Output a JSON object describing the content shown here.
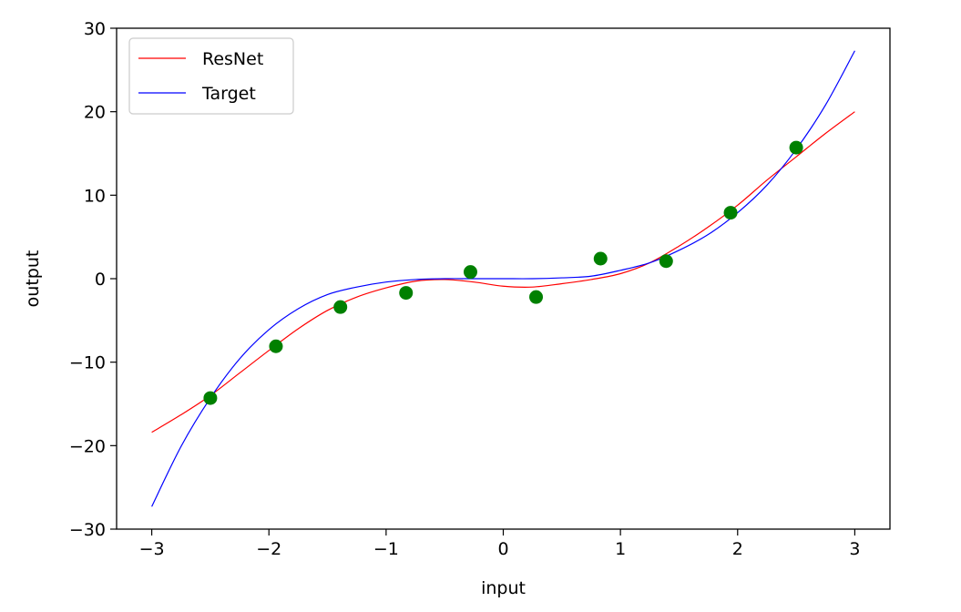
{
  "chart_data": {
    "type": "line",
    "title": "",
    "xlabel": "input",
    "ylabel": "output",
    "xlim": [
      -3.3,
      3.3
    ],
    "ylim": [
      -30,
      30
    ],
    "xticks": [
      -3,
      -2,
      -1,
      0,
      1,
      2,
      3
    ],
    "xtick_labels": [
      "−3",
      "−2",
      "−1",
      "0",
      "1",
      "2",
      "3"
    ],
    "yticks": [
      -30,
      -20,
      -10,
      0,
      10,
      20,
      30
    ],
    "ytick_labels": [
      "−30",
      "−20",
      "−10",
      "0",
      "10",
      "20",
      "30"
    ],
    "legend_position": "upper-left",
    "series": [
      {
        "name": "ResNet",
        "kind": "line",
        "color": "#ff0000",
        "x": [
          -3.0,
          -2.75,
          -2.5,
          -2.25,
          -2.0,
          -1.75,
          -1.5,
          -1.25,
          -1.0,
          -0.75,
          -0.5,
          -0.25,
          0.0,
          0.25,
          0.5,
          0.75,
          1.0,
          1.25,
          1.5,
          1.75,
          2.0,
          2.25,
          2.5,
          2.75,
          3.0
        ],
        "y": [
          -18.4,
          -16.3,
          -14.0,
          -11.3,
          -8.6,
          -6.0,
          -3.8,
          -2.2,
          -1.1,
          -0.3,
          -0.1,
          -0.4,
          -0.9,
          -1.0,
          -0.6,
          -0.1,
          0.6,
          1.9,
          3.9,
          6.2,
          8.8,
          11.8,
          14.6,
          17.4,
          20.0
        ]
      },
      {
        "name": "Target",
        "kind": "line",
        "color": "#0000ff",
        "x": [
          -3.0,
          -2.75,
          -2.5,
          -2.25,
          -2.0,
          -1.75,
          -1.5,
          -1.25,
          -1.0,
          -0.75,
          -0.5,
          -0.25,
          0.0,
          0.25,
          0.5,
          0.75,
          1.0,
          1.25,
          1.5,
          1.75,
          2.0,
          2.25,
          2.5,
          2.75,
          3.0
        ],
        "y": [
          -27.3,
          -20.1,
          -14.3,
          -9.6,
          -6.1,
          -3.6,
          -1.9,
          -1.0,
          -0.4,
          -0.1,
          0.0,
          0.0,
          0.0,
          0.0,
          0.1,
          0.3,
          1.0,
          1.9,
          3.4,
          5.3,
          7.9,
          11.2,
          15.5,
          20.8,
          27.3
        ]
      },
      {
        "kind": "scatter",
        "color": "#008000",
        "x": [
          -2.5,
          -1.94,
          -1.39,
          -0.83,
          -0.28,
          0.28,
          0.83,
          1.39,
          1.94,
          2.5
        ],
        "y": [
          -14.3,
          -8.1,
          -3.4,
          -1.7,
          0.8,
          -2.2,
          2.4,
          2.1,
          7.9,
          15.7
        ]
      }
    ]
  }
}
